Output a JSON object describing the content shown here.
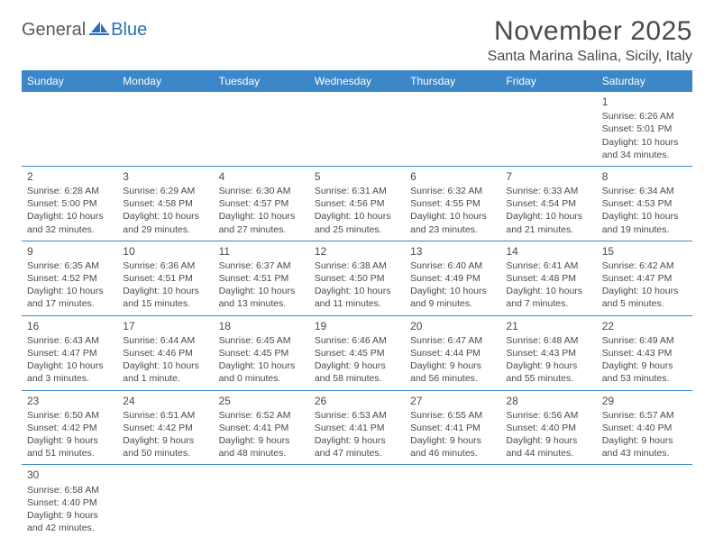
{
  "logo": {
    "part1": "General",
    "part2": "Blue"
  },
  "title": "November 2025",
  "location": "Santa Marina Salina, Sicily, Italy",
  "colors": {
    "header_bg": "#3b87c8",
    "header_text": "#ffffff",
    "border": "#3b87c8",
    "text": "#4a4a4a",
    "logo_gray": "#5a5a5a",
    "logo_blue": "#2a70b8",
    "page_bg": "#ffffff"
  },
  "typography": {
    "title_fontsize": 30,
    "location_fontsize": 16,
    "weekday_fontsize": 12,
    "daynum_fontsize": 12,
    "cell_fontsize": 10.5
  },
  "weekdays": [
    "Sunday",
    "Monday",
    "Tuesday",
    "Wednesday",
    "Thursday",
    "Friday",
    "Saturday"
  ],
  "weeks": [
    [
      null,
      null,
      null,
      null,
      null,
      null,
      {
        "n": "1",
        "sunrise": "Sunrise: 6:26 AM",
        "sunset": "Sunset: 5:01 PM",
        "daylight": "Daylight: 10 hours and 34 minutes."
      }
    ],
    [
      {
        "n": "2",
        "sunrise": "Sunrise: 6:28 AM",
        "sunset": "Sunset: 5:00 PM",
        "daylight": "Daylight: 10 hours and 32 minutes."
      },
      {
        "n": "3",
        "sunrise": "Sunrise: 6:29 AM",
        "sunset": "Sunset: 4:58 PM",
        "daylight": "Daylight: 10 hours and 29 minutes."
      },
      {
        "n": "4",
        "sunrise": "Sunrise: 6:30 AM",
        "sunset": "Sunset: 4:57 PM",
        "daylight": "Daylight: 10 hours and 27 minutes."
      },
      {
        "n": "5",
        "sunrise": "Sunrise: 6:31 AM",
        "sunset": "Sunset: 4:56 PM",
        "daylight": "Daylight: 10 hours and 25 minutes."
      },
      {
        "n": "6",
        "sunrise": "Sunrise: 6:32 AM",
        "sunset": "Sunset: 4:55 PM",
        "daylight": "Daylight: 10 hours and 23 minutes."
      },
      {
        "n": "7",
        "sunrise": "Sunrise: 6:33 AM",
        "sunset": "Sunset: 4:54 PM",
        "daylight": "Daylight: 10 hours and 21 minutes."
      },
      {
        "n": "8",
        "sunrise": "Sunrise: 6:34 AM",
        "sunset": "Sunset: 4:53 PM",
        "daylight": "Daylight: 10 hours and 19 minutes."
      }
    ],
    [
      {
        "n": "9",
        "sunrise": "Sunrise: 6:35 AM",
        "sunset": "Sunset: 4:52 PM",
        "daylight": "Daylight: 10 hours and 17 minutes."
      },
      {
        "n": "10",
        "sunrise": "Sunrise: 6:36 AM",
        "sunset": "Sunset: 4:51 PM",
        "daylight": "Daylight: 10 hours and 15 minutes."
      },
      {
        "n": "11",
        "sunrise": "Sunrise: 6:37 AM",
        "sunset": "Sunset: 4:51 PM",
        "daylight": "Daylight: 10 hours and 13 minutes."
      },
      {
        "n": "12",
        "sunrise": "Sunrise: 6:38 AM",
        "sunset": "Sunset: 4:50 PM",
        "daylight": "Daylight: 10 hours and 11 minutes."
      },
      {
        "n": "13",
        "sunrise": "Sunrise: 6:40 AM",
        "sunset": "Sunset: 4:49 PM",
        "daylight": "Daylight: 10 hours and 9 minutes."
      },
      {
        "n": "14",
        "sunrise": "Sunrise: 6:41 AM",
        "sunset": "Sunset: 4:48 PM",
        "daylight": "Daylight: 10 hours and 7 minutes."
      },
      {
        "n": "15",
        "sunrise": "Sunrise: 6:42 AM",
        "sunset": "Sunset: 4:47 PM",
        "daylight": "Daylight: 10 hours and 5 minutes."
      }
    ],
    [
      {
        "n": "16",
        "sunrise": "Sunrise: 6:43 AM",
        "sunset": "Sunset: 4:47 PM",
        "daylight": "Daylight: 10 hours and 3 minutes."
      },
      {
        "n": "17",
        "sunrise": "Sunrise: 6:44 AM",
        "sunset": "Sunset: 4:46 PM",
        "daylight": "Daylight: 10 hours and 1 minute."
      },
      {
        "n": "18",
        "sunrise": "Sunrise: 6:45 AM",
        "sunset": "Sunset: 4:45 PM",
        "daylight": "Daylight: 10 hours and 0 minutes."
      },
      {
        "n": "19",
        "sunrise": "Sunrise: 6:46 AM",
        "sunset": "Sunset: 4:45 PM",
        "daylight": "Daylight: 9 hours and 58 minutes."
      },
      {
        "n": "20",
        "sunrise": "Sunrise: 6:47 AM",
        "sunset": "Sunset: 4:44 PM",
        "daylight": "Daylight: 9 hours and 56 minutes."
      },
      {
        "n": "21",
        "sunrise": "Sunrise: 6:48 AM",
        "sunset": "Sunset: 4:43 PM",
        "daylight": "Daylight: 9 hours and 55 minutes."
      },
      {
        "n": "22",
        "sunrise": "Sunrise: 6:49 AM",
        "sunset": "Sunset: 4:43 PM",
        "daylight": "Daylight: 9 hours and 53 minutes."
      }
    ],
    [
      {
        "n": "23",
        "sunrise": "Sunrise: 6:50 AM",
        "sunset": "Sunset: 4:42 PM",
        "daylight": "Daylight: 9 hours and 51 minutes."
      },
      {
        "n": "24",
        "sunrise": "Sunrise: 6:51 AM",
        "sunset": "Sunset: 4:42 PM",
        "daylight": "Daylight: 9 hours and 50 minutes."
      },
      {
        "n": "25",
        "sunrise": "Sunrise: 6:52 AM",
        "sunset": "Sunset: 4:41 PM",
        "daylight": "Daylight: 9 hours and 48 minutes."
      },
      {
        "n": "26",
        "sunrise": "Sunrise: 6:53 AM",
        "sunset": "Sunset: 4:41 PM",
        "daylight": "Daylight: 9 hours and 47 minutes."
      },
      {
        "n": "27",
        "sunrise": "Sunrise: 6:55 AM",
        "sunset": "Sunset: 4:41 PM",
        "daylight": "Daylight: 9 hours and 46 minutes."
      },
      {
        "n": "28",
        "sunrise": "Sunrise: 6:56 AM",
        "sunset": "Sunset: 4:40 PM",
        "daylight": "Daylight: 9 hours and 44 minutes."
      },
      {
        "n": "29",
        "sunrise": "Sunrise: 6:57 AM",
        "sunset": "Sunset: 4:40 PM",
        "daylight": "Daylight: 9 hours and 43 minutes."
      }
    ],
    [
      {
        "n": "30",
        "sunrise": "Sunrise: 6:58 AM",
        "sunset": "Sunset: 4:40 PM",
        "daylight": "Daylight: 9 hours and 42 minutes."
      },
      null,
      null,
      null,
      null,
      null,
      null
    ]
  ]
}
